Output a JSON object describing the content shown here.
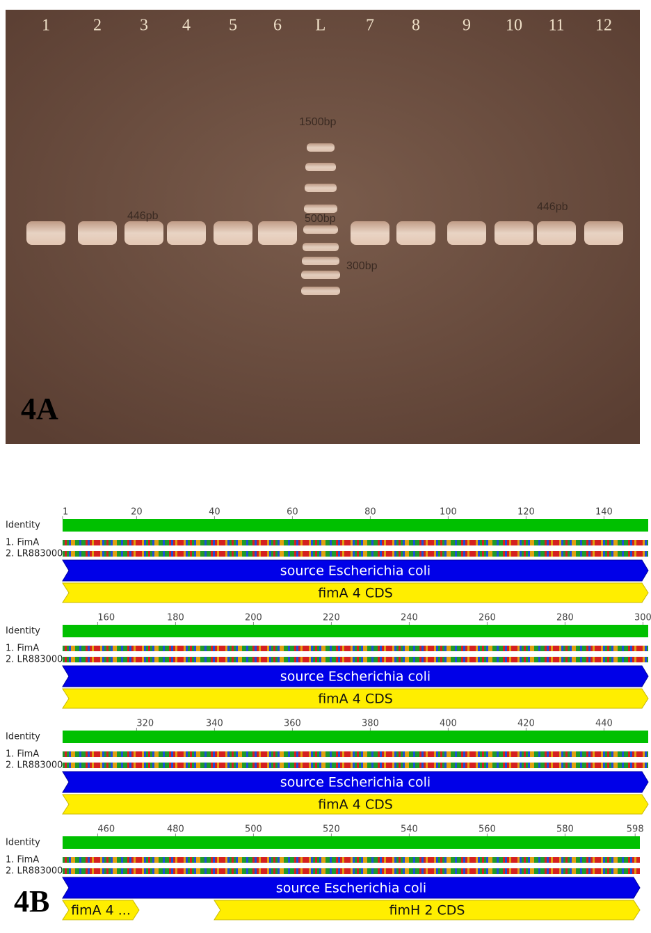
{
  "gel": {
    "lanes": [
      "1",
      "2",
      "3",
      "4",
      "5",
      "6",
      "L",
      "7",
      "8",
      "9",
      "10",
      "11",
      "12"
    ],
    "band_labels": [
      "1500bp",
      "446pb",
      "500bp",
      "300bp",
      "446pb"
    ],
    "panel_label": "4A"
  },
  "alignment": {
    "panel_label": "4B",
    "blocks": [
      {
        "ruler": [
          1,
          20,
          40,
          60,
          80,
          100,
          120,
          140
        ],
        "identity": "Identity",
        "sequences": [
          "1. FimA",
          "2. LR883000"
        ],
        "annotations": [
          "source Escherichia coli",
          "fimA 4 CDS"
        ]
      },
      {
        "ruler": [
          160,
          180,
          200,
          220,
          240,
          260,
          280,
          300
        ],
        "identity": "Identity",
        "sequences": [
          "1. FimA",
          "2. LR883000"
        ],
        "annotations": [
          "source Escherichia coli",
          "fimA 4 CDS"
        ]
      },
      {
        "ruler": [
          320,
          340,
          360,
          380,
          400,
          420,
          440
        ],
        "identity": "Identity",
        "sequences": [
          "1. FimA",
          "2. LR883000"
        ],
        "annotations": [
          "source Escherichia coli",
          "fimA 4 CDS"
        ]
      },
      {
        "ruler": [
          460,
          480,
          500,
          520,
          540,
          560,
          580,
          598
        ],
        "identity": "Identity",
        "sequences": [
          "1. FimA",
          "2. LR883000"
        ],
        "annotations": [
          "source Escherichia coli",
          "fimA 4 ...",
          "fimH 2 CDS"
        ]
      }
    ]
  }
}
